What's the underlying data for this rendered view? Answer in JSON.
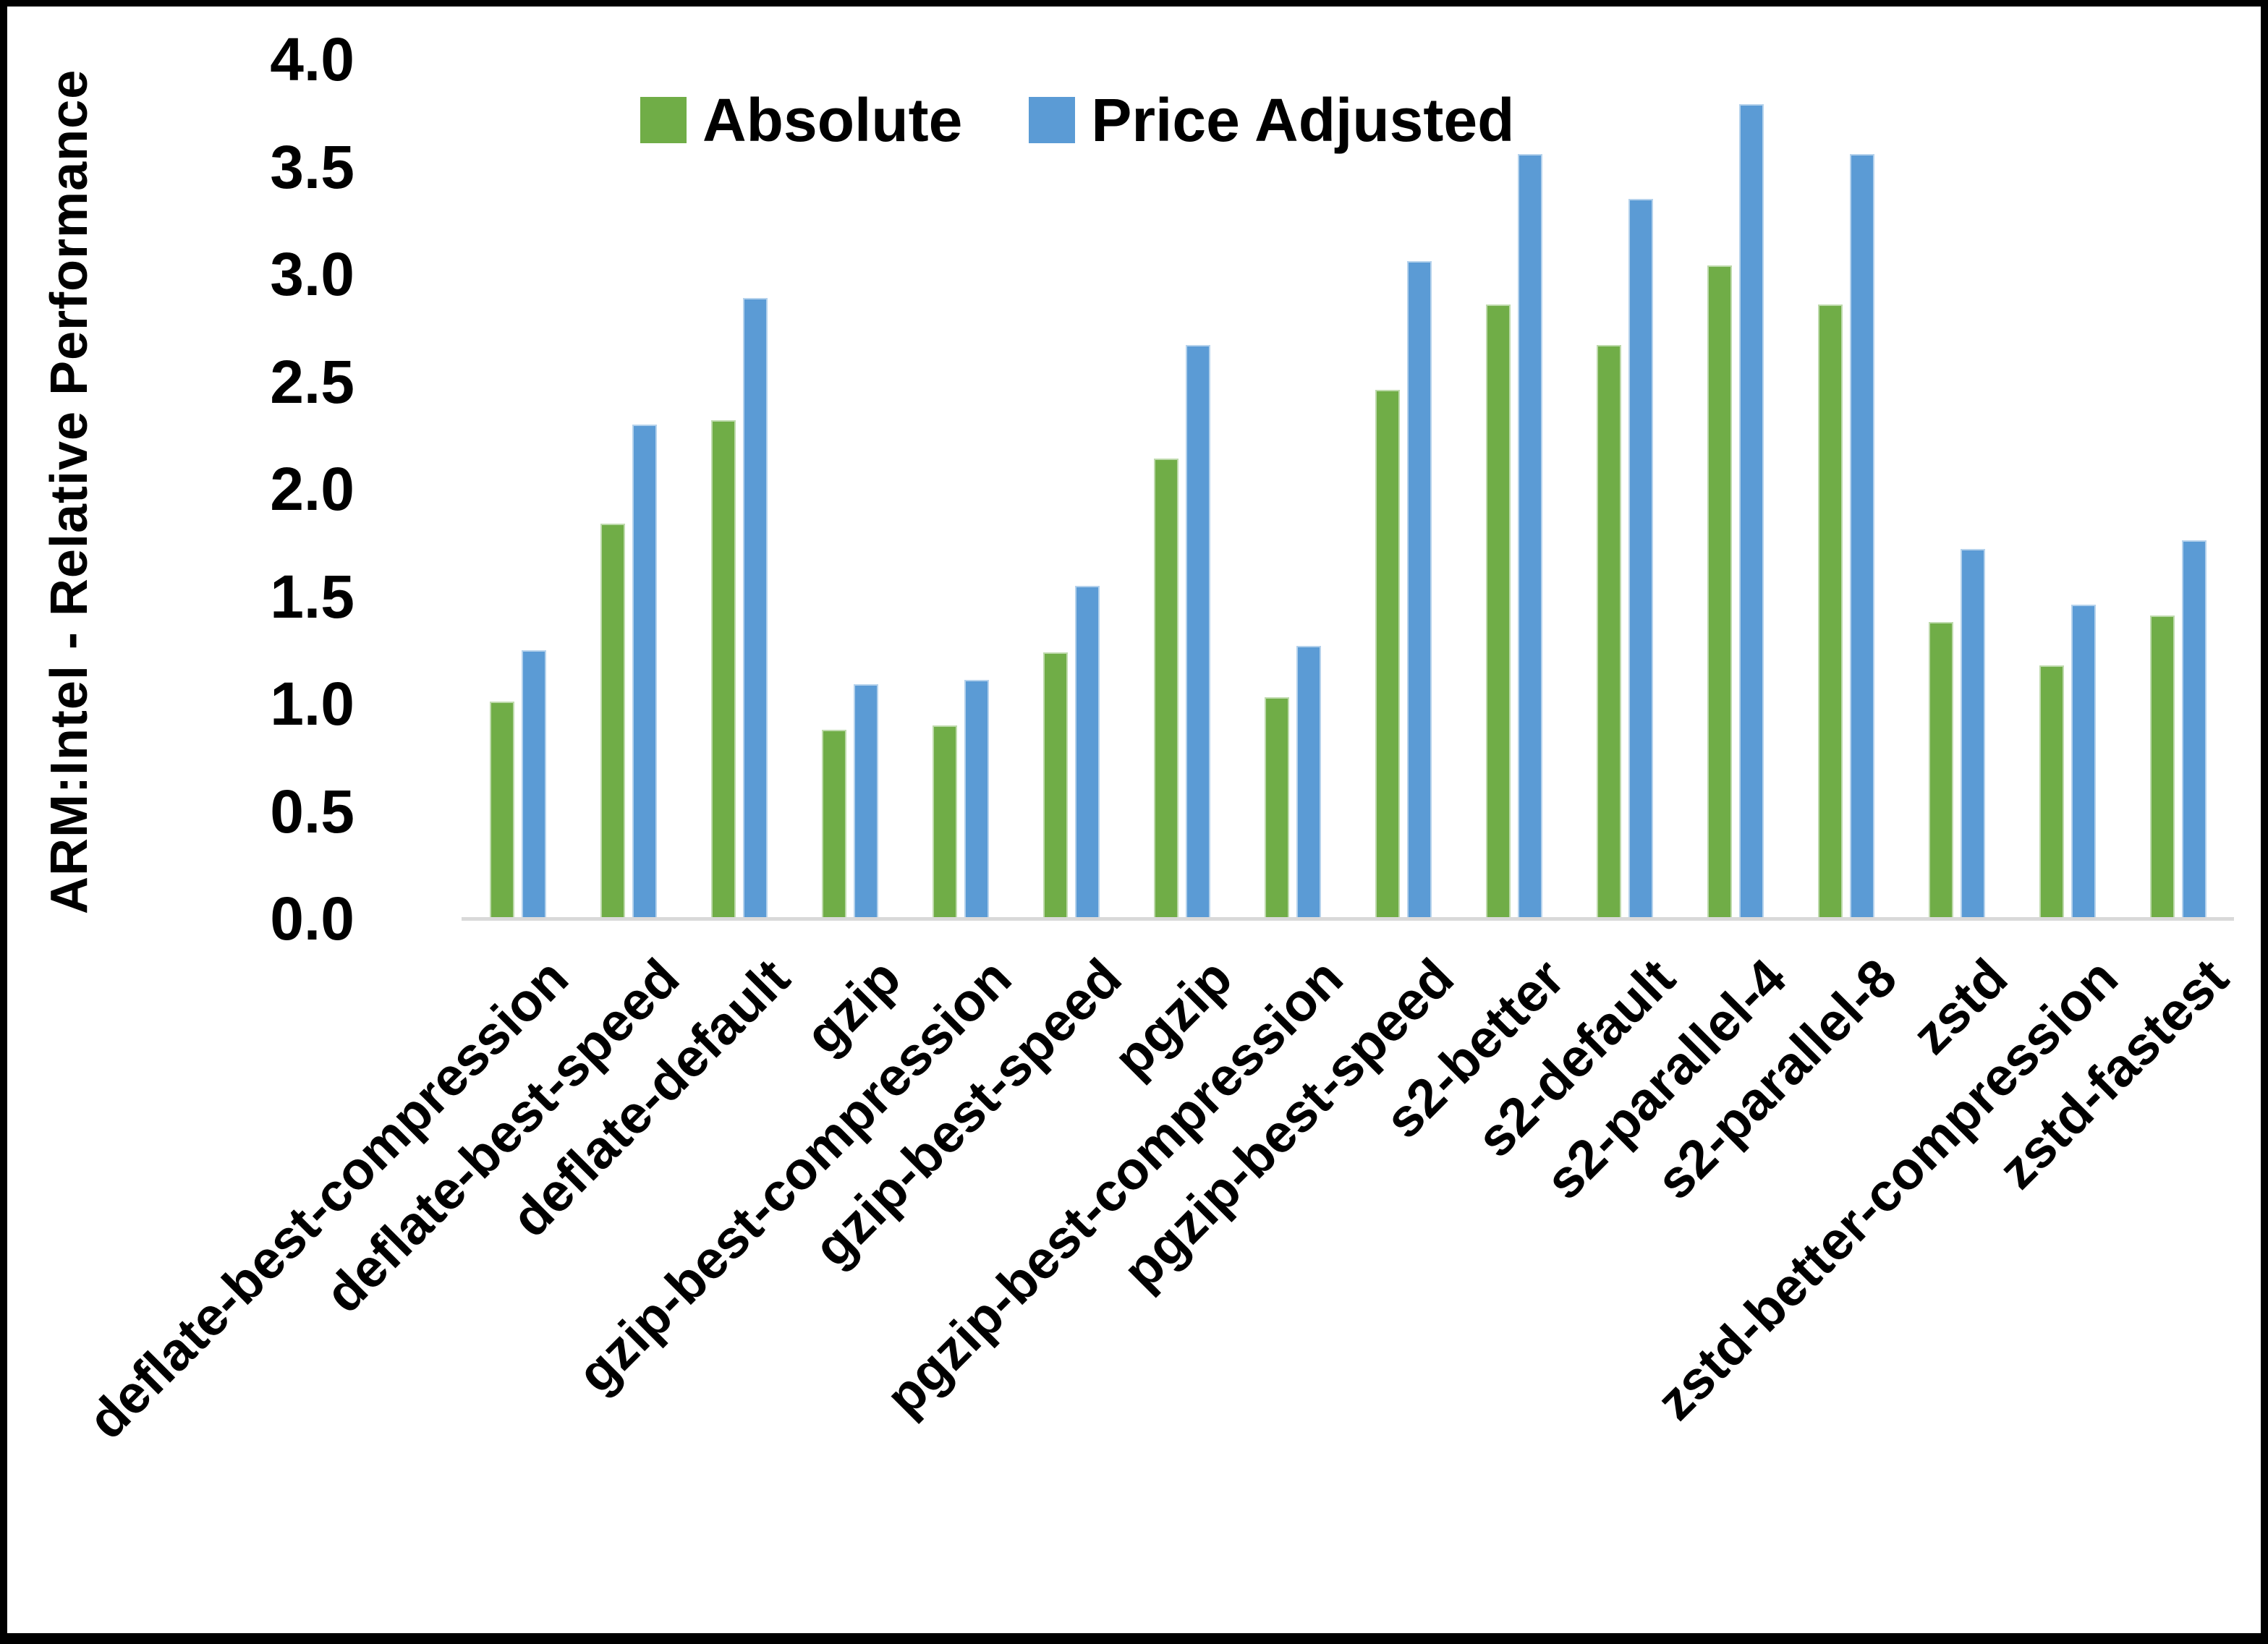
{
  "chart_data": {
    "type": "bar",
    "title": "",
    "ylabel": "ARM:Intel - Relative Performance",
    "xlabel": "",
    "categories": [
      "deflate-best-compression",
      "deflate-best-speed",
      "deflate-default",
      "gzip",
      "gzip-best-compression",
      "gzip-best-speed",
      "pgzip",
      "pgzip-best-compression",
      "pgzip-best-speed",
      "s2-better",
      "s2-default",
      "s2-parallel-4",
      "s2-parallel-8",
      "zstd",
      "zstd-better-compression",
      "zstd-fastest"
    ],
    "series": [
      {
        "name": "Absolute",
        "color": "#70AD47",
        "values": [
          1.01,
          1.84,
          2.32,
          0.88,
          0.9,
          1.24,
          2.14,
          1.03,
          2.46,
          2.86,
          2.67,
          3.04,
          2.86,
          1.38,
          1.18,
          1.41
        ]
      },
      {
        "name": "Price Adjusted",
        "color": "#5B9BD5",
        "values": [
          1.25,
          2.3,
          2.89,
          1.09,
          1.11,
          1.55,
          2.67,
          1.27,
          3.06,
          3.56,
          3.35,
          3.79,
          3.56,
          1.72,
          1.46,
          1.76
        ]
      }
    ],
    "y_axis": {
      "min": 0.0,
      "max": 4.0,
      "step": 0.5,
      "tick_labels": [
        "0.0",
        "0.5",
        "1.0",
        "1.5",
        "2.0",
        "2.5",
        "3.0",
        "3.5",
        "4.0"
      ]
    },
    "legend_position": "top",
    "grid": false,
    "axis_line_color": "#d9d9d9",
    "background_color": "#ffffff",
    "border_color": "#000000"
  }
}
